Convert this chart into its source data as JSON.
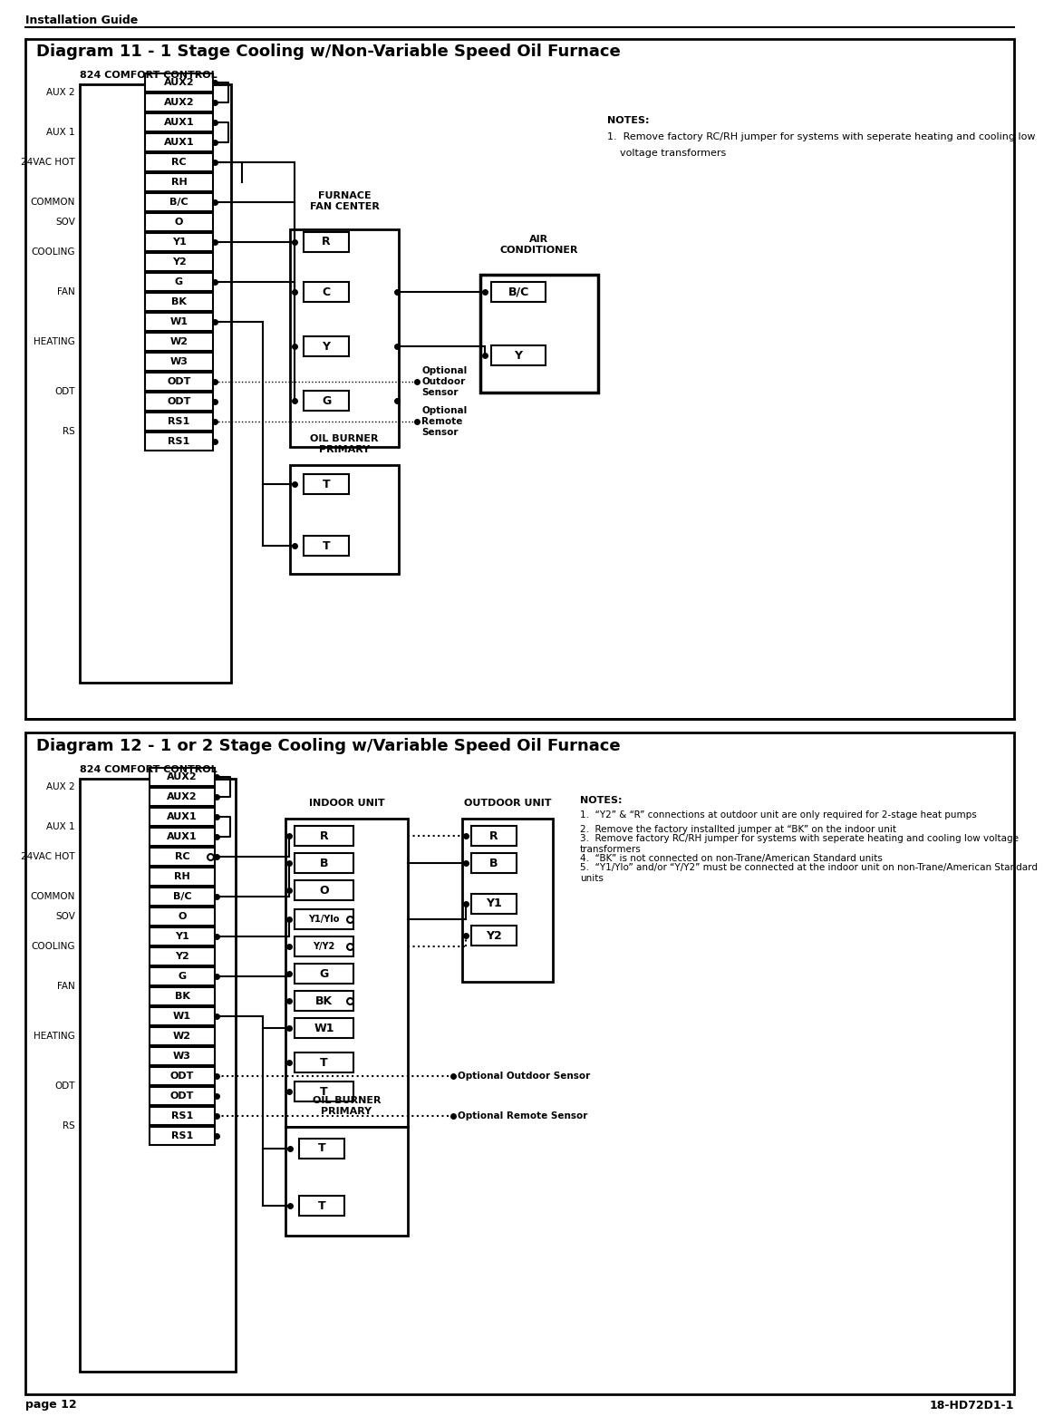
{
  "page_header": "Installation Guide",
  "page_footer_left": "page 12",
  "page_footer_right": "18-HD72D1-1",
  "diagram1": {
    "title": "Diagram 11 - 1 Stage Cooling w/Non-Variable Speed Oil Furnace",
    "control_label": "824 COMFORT CONTROL",
    "furnace_label": "FURNACE\nFAN CENTER",
    "oil_burner_label": "OIL BURNER\nPRIMARY",
    "air_cond_label": "AIR\nCONDITIONER",
    "left_labels": [
      "AUX 2",
      "AUX 1",
      "24VAC HOT",
      "COMMON",
      "SOV",
      "COOLING",
      "FAN",
      "HEATING",
      "ODT",
      "RS"
    ],
    "terminal_rows": [
      "AUX2",
      "AUX2",
      "AUX1",
      "AUX1",
      "RC",
      "RH",
      "B/C",
      "O",
      "Y1",
      "Y2",
      "G",
      "BK",
      "W1",
      "W2",
      "W3",
      "ODT",
      "ODT",
      "RS1",
      "RS1"
    ],
    "furnace_terminals": [
      "R",
      "C",
      "Y",
      "G",
      "T",
      "T"
    ],
    "ac_terminals": [
      "B/C",
      "Y"
    ],
    "notes": [
      "NOTES:",
      "1.  Remove factory RC/RH jumper for systems with seperate heating and cooling low",
      "    voltage transformers"
    ],
    "optional_outdoor": "Optional\nOutdoor\nSensor",
    "optional_remote": "Optional\nRemote\nSensor"
  },
  "diagram2": {
    "title": "Diagram 12 - 1 or 2 Stage Cooling w/Variable Speed Oil Furnace",
    "control_label": "824 COMFORT CONTROL",
    "indoor_label": "INDOOR UNIT",
    "outdoor_label": "OUTDOOR UNIT",
    "oil_burner_label": "OIL BURNER\nPRIMARY",
    "left_labels": [
      "AUX 2",
      "AUX 1",
      "24VAC HOT",
      "COMMON",
      "SOV",
      "COOLING",
      "FAN",
      "HEATING",
      "ODT",
      "RS"
    ],
    "terminal_rows": [
      "AUX2",
      "AUX2",
      "AUX1",
      "AUX1",
      "RC",
      "RH",
      "B/C",
      "O",
      "Y1",
      "Y2",
      "G",
      "BK",
      "W1",
      "W2",
      "W3",
      "ODT",
      "ODT",
      "RS1",
      "RS1"
    ],
    "indoor_terminals": [
      "R",
      "B",
      "O",
      "Y1/Ylo",
      "Y/Y2",
      "G",
      "BK",
      "W1",
      "T",
      "T"
    ],
    "outdoor_terminals": [
      "R",
      "B",
      "Y1",
      "Y2"
    ],
    "notes_header": "NOTES:",
    "notes": [
      "1.  “Y2” & “R” connections at outdoor unit are only required for 2-stage heat pumps",
      "2.  Remove the factory installted jumper at “BK” on the indoor unit",
      "3.  Remove factory RC/RH jumper for systems with seperate heating and cooling low voltage transformers",
      "4.  “BK” is not connected on non-Trane/American Standard units",
      "5.  “Y1/Ylo” and/or “Y/Y2” must be connected at the indoor unit on non-Trane/American Standard units"
    ],
    "optional_outdoor": "Optional Outdoor Sensor",
    "optional_remote": "Optional Remote Sensor"
  },
  "colors": {
    "black": "#000000",
    "white": "#ffffff",
    "box_border": "#000000",
    "text": "#000000",
    "background": "#ffffff"
  }
}
